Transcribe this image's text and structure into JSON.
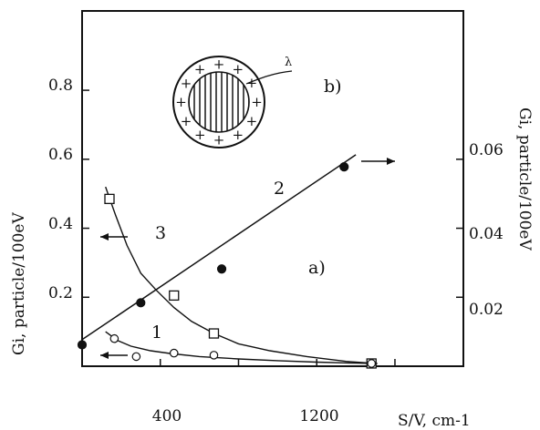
{
  "chart_data": {
    "type": "scatter",
    "xlabel": "S/V, cm-1",
    "ylabel_left": "Gi, particle/100eV",
    "ylabel_right": "Gi, particle/100eV",
    "x_ticks": [
      "400",
      "1200"
    ],
    "x_tick_values": [
      400,
      1200
    ],
    "y_left_ticks": [
      "0.2",
      "0.4",
      "0.6",
      "0.8"
    ],
    "y_left_tick_values": [
      0.2,
      0.4,
      0.6,
      0.8
    ],
    "y_right_ticks": [
      "0.02",
      "0.04",
      "0.06"
    ],
    "y_right_tick_values": [
      0.02,
      0.04,
      0.06
    ],
    "xlim": [
      0,
      1950
    ],
    "ylim_left": [
      0,
      1.03
    ],
    "ylim_right": [
      0,
      0.103
    ],
    "series": [
      {
        "label": "2",
        "axis": "right",
        "marker": "filled-circle",
        "points": [
          [
            0,
            0.0062
          ],
          [
            300,
            0.0184
          ],
          [
            714,
            0.0282
          ],
          [
            1340,
            0.0578
          ]
        ],
        "fit_line": [
          [
            0,
            0.0077
          ],
          [
            1400,
            0.0613
          ]
        ]
      },
      {
        "label": "3",
        "axis": "left",
        "marker": "open-square",
        "points": [
          [
            140,
            0.485
          ],
          [
            470,
            0.205
          ],
          [
            674,
            0.095
          ],
          [
            1480,
            0.008
          ]
        ],
        "curve": [
          [
            120,
            0.52
          ],
          [
            170,
            0.44
          ],
          [
            230,
            0.35
          ],
          [
            300,
            0.27
          ],
          [
            380,
            0.22
          ],
          [
            470,
            0.17
          ],
          [
            560,
            0.13
          ],
          [
            674,
            0.095
          ],
          [
            800,
            0.065
          ],
          [
            960,
            0.045
          ],
          [
            1150,
            0.028
          ],
          [
            1350,
            0.014
          ],
          [
            1500,
            0.008
          ]
        ]
      },
      {
        "label": "1",
        "axis": "left",
        "marker": "open-circle",
        "points": [
          [
            165,
            0.08
          ],
          [
            277,
            0.028
          ],
          [
            470,
            0.038
          ],
          [
            674,
            0.032
          ],
          [
            1480,
            0.008
          ]
        ],
        "curve": [
          [
            120,
            0.1
          ],
          [
            180,
            0.075
          ],
          [
            250,
            0.058
          ],
          [
            350,
            0.045
          ],
          [
            450,
            0.037
          ],
          [
            600,
            0.028
          ],
          [
            800,
            0.021
          ],
          [
            1000,
            0.016
          ],
          [
            1200,
            0.012
          ],
          [
            1400,
            0.009
          ],
          [
            1510,
            0.008
          ]
        ]
      }
    ],
    "annotations": {
      "label_a": "a)",
      "label_b": "b)",
      "label_lambda": "λ",
      "curve_label_1": "1",
      "curve_label_2": "2",
      "curve_label_3": "3",
      "inset_plus_sign": "+"
    }
  },
  "colors": {
    "ink": "#111111",
    "background": "#ffffff",
    "hatch": "#222222"
  }
}
